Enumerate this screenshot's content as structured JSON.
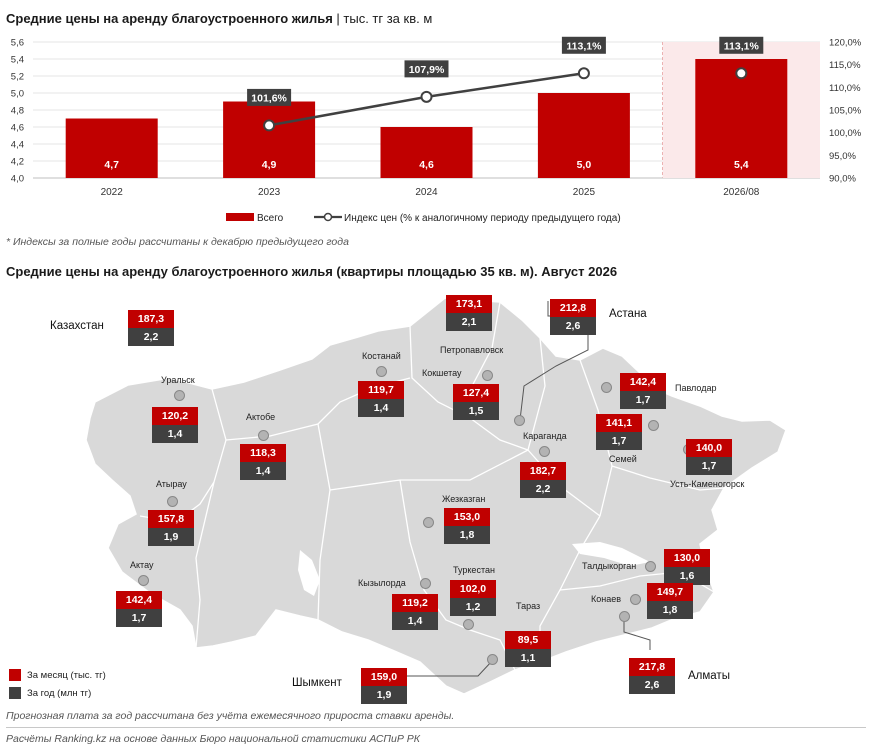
{
  "top_title": "Средние цены на аренду благоустроенного жилья",
  "top_title_sub": " | тыс. тг за кв. м",
  "chart_data": {
    "type": "bar",
    "categories": [
      "2022",
      "2023",
      "2024",
      "2025",
      "2026/08"
    ],
    "series": [
      {
        "name": "Всего",
        "type": "bar",
        "values": [
          4.7,
          4.9,
          4.6,
          5.0,
          5.4
        ],
        "labels": [
          "4,7",
          "4,9",
          "4,6",
          "5,0",
          "5,4"
        ]
      },
      {
        "name": "Индекс цен (% к аналогичному периоду предыдущего года)",
        "type": "line",
        "axis": "right",
        "x": [
          "2023",
          "2024",
          "2025",
          "2026/08"
        ],
        "values": [
          101.6,
          107.9,
          113.1,
          113.1
        ],
        "labels": [
          "101,6%",
          "107,9%",
          "113,1%",
          "113,1%"
        ]
      }
    ],
    "ylim": [
      4.0,
      5.6
    ],
    "yticks": [
      "4,0",
      "4,2",
      "4,4",
      "4,6",
      "4,8",
      "5,0",
      "5,2",
      "5,4",
      "5,6"
    ],
    "y2lim": [
      90,
      120
    ],
    "y2ticks": [
      "90,0%",
      "95,0%",
      "100,0%",
      "105,0%",
      "110,0%",
      "115,0%",
      "120,0%"
    ],
    "grid": true,
    "legend": "bottom",
    "highlight_category": "2026/08",
    "colors": {
      "bar": "#c00000",
      "line": "#404040",
      "highlight_bg": "#fbe9ea"
    }
  },
  "footnote_index": "* Индексы за полные годы рассчитаны к декабрю предыдущего года",
  "map_title": "Средние цены на аренду благоустроенного жилья (квартиры площадью 35 кв. м). Август 2026",
  "country": {
    "name": "Казахстан",
    "month": "187,3",
    "year": "2,2"
  },
  "cities": [
    {
      "name": "Петропавловск",
      "month": "173,1",
      "year": "2,1"
    },
    {
      "name": "Астана",
      "month": "212,8",
      "year": "2,6"
    },
    {
      "name": "Костанай",
      "month": "119,7",
      "year": "1,4"
    },
    {
      "name": "Кокшетау",
      "month": "127,4",
      "year": "1,5"
    },
    {
      "name": "Уральск",
      "month": "120,2",
      "year": "1,4"
    },
    {
      "name": "Актобе",
      "month": "118,3",
      "year": "1,4"
    },
    {
      "name": "Павлодар",
      "month": "142,4",
      "year": "1,7"
    },
    {
      "name": "Семей",
      "month": "141,1",
      "year": "1,7"
    },
    {
      "name": "Усть-Каменогорск",
      "month": "140,0",
      "year": "1,7"
    },
    {
      "name": "Караганда",
      "month": "182,7",
      "year": "2,2"
    },
    {
      "name": "Атырау",
      "month": "157,8",
      "year": "1,9"
    },
    {
      "name": "Жезказган",
      "month": "153,0",
      "year": "1,8"
    },
    {
      "name": "Талдыкорган",
      "month": "130,0",
      "year": "1,6"
    },
    {
      "name": "Актау",
      "month": "142,4",
      "year": "1,7"
    },
    {
      "name": "Кызылорда",
      "month": "119,2",
      "year": "1,4"
    },
    {
      "name": "Туркестан",
      "month": "102,0",
      "year": "1,2"
    },
    {
      "name": "Конаев",
      "month": "149,7",
      "year": "1,8"
    },
    {
      "name": "Тараз",
      "month": "89,5",
      "year": "1,1"
    },
    {
      "name": "Алматы",
      "month": "217,8",
      "year": "2,6"
    },
    {
      "name": "Шымкент",
      "month": "159,0",
      "year": "1,9"
    }
  ],
  "map_legend": {
    "month": "За месяц (тыс. тг)",
    "year": "За год (млн тг)"
  },
  "footnote_forecast": "Прогнозная плата за год рассчитана без учёта ежемесячного прироста ставки аренды.",
  "source": "Расчёты Ranking.kz на основе данных Бюро национальной статистики АСПиР РК"
}
